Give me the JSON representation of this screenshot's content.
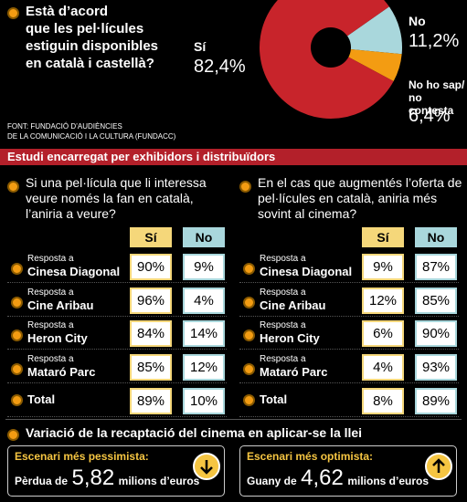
{
  "question_lines": [
    "Està d’acord",
    "que les pel·lícules",
    "estiguin disponibles",
    "en català i castellà?"
  ],
  "chart_data": {
    "type": "pie",
    "categories": [
      "Sí",
      "No",
      "No ho sap/ no contesta"
    ],
    "values": [
      82.4,
      11.2,
      6.4
    ],
    "value_labels": [
      "82,4%",
      "11,2%",
      "6,4%"
    ],
    "colors": [
      "#c8242b",
      "#a9d7dc",
      "#f39c12"
    ]
  },
  "source_lines": [
    "FONT: FUNDACIÓ D’AUDIÈNCIES",
    "DE LA COMUNICACIÓ I LA CULTURA (FUNDACC)"
  ],
  "band": "Estudi encarregat per exhibidors i distribuïdors",
  "tables": [
    {
      "question": "Si una pel·lícula que li interessa veure només la fan en català, l’aniria a veure?",
      "columns": [
        "Sí",
        "No"
      ],
      "rows": [
        {
          "prefix": "Resposta a",
          "name": "Cinesa Diagonal",
          "values": [
            "90%",
            "9%"
          ]
        },
        {
          "prefix": "Resposta a",
          "name": "Cine Aribau",
          "values": [
            "96%",
            "4%"
          ]
        },
        {
          "prefix": "Resposta a",
          "name": "Heron City",
          "values": [
            "84%",
            "14%"
          ]
        },
        {
          "prefix": "Resposta a",
          "name": "Mataró Parc",
          "values": [
            "85%",
            "12%"
          ]
        }
      ],
      "total": {
        "name": "Total",
        "values": [
          "89%",
          "10%"
        ]
      }
    },
    {
      "question": "En el cas que augmentés l’oferta de pel·lícules en català, aniria més sovint al cinema?",
      "columns": [
        "Sí",
        "No"
      ],
      "rows": [
        {
          "prefix": "Resposta a",
          "name": "Cinesa Diagonal",
          "values": [
            "9%",
            "87%"
          ]
        },
        {
          "prefix": "Resposta a",
          "name": "Cine Aribau",
          "values": [
            "12%",
            "85%"
          ]
        },
        {
          "prefix": "Resposta a",
          "name": "Heron City",
          "values": [
            "6%",
            "90%"
          ]
        },
        {
          "prefix": "Resposta a",
          "name": "Mataró Parc",
          "values": [
            "4%",
            "93%"
          ]
        }
      ],
      "total": {
        "name": "Total",
        "values": [
          "8%",
          "89%"
        ]
      }
    }
  ],
  "scenario_heading": "Variació de la recaptació del cinema en aplicar-se la llei",
  "scenarios": [
    {
      "title": "Escenari més pessimista:",
      "prefix": "Pèrdua de",
      "amount": "5,82",
      "suffix": "milions d’euros"
    },
    {
      "title": "Escenari més optimista:",
      "prefix": "Guany de",
      "amount": "4,62",
      "suffix": "milions d’euros"
    }
  ]
}
